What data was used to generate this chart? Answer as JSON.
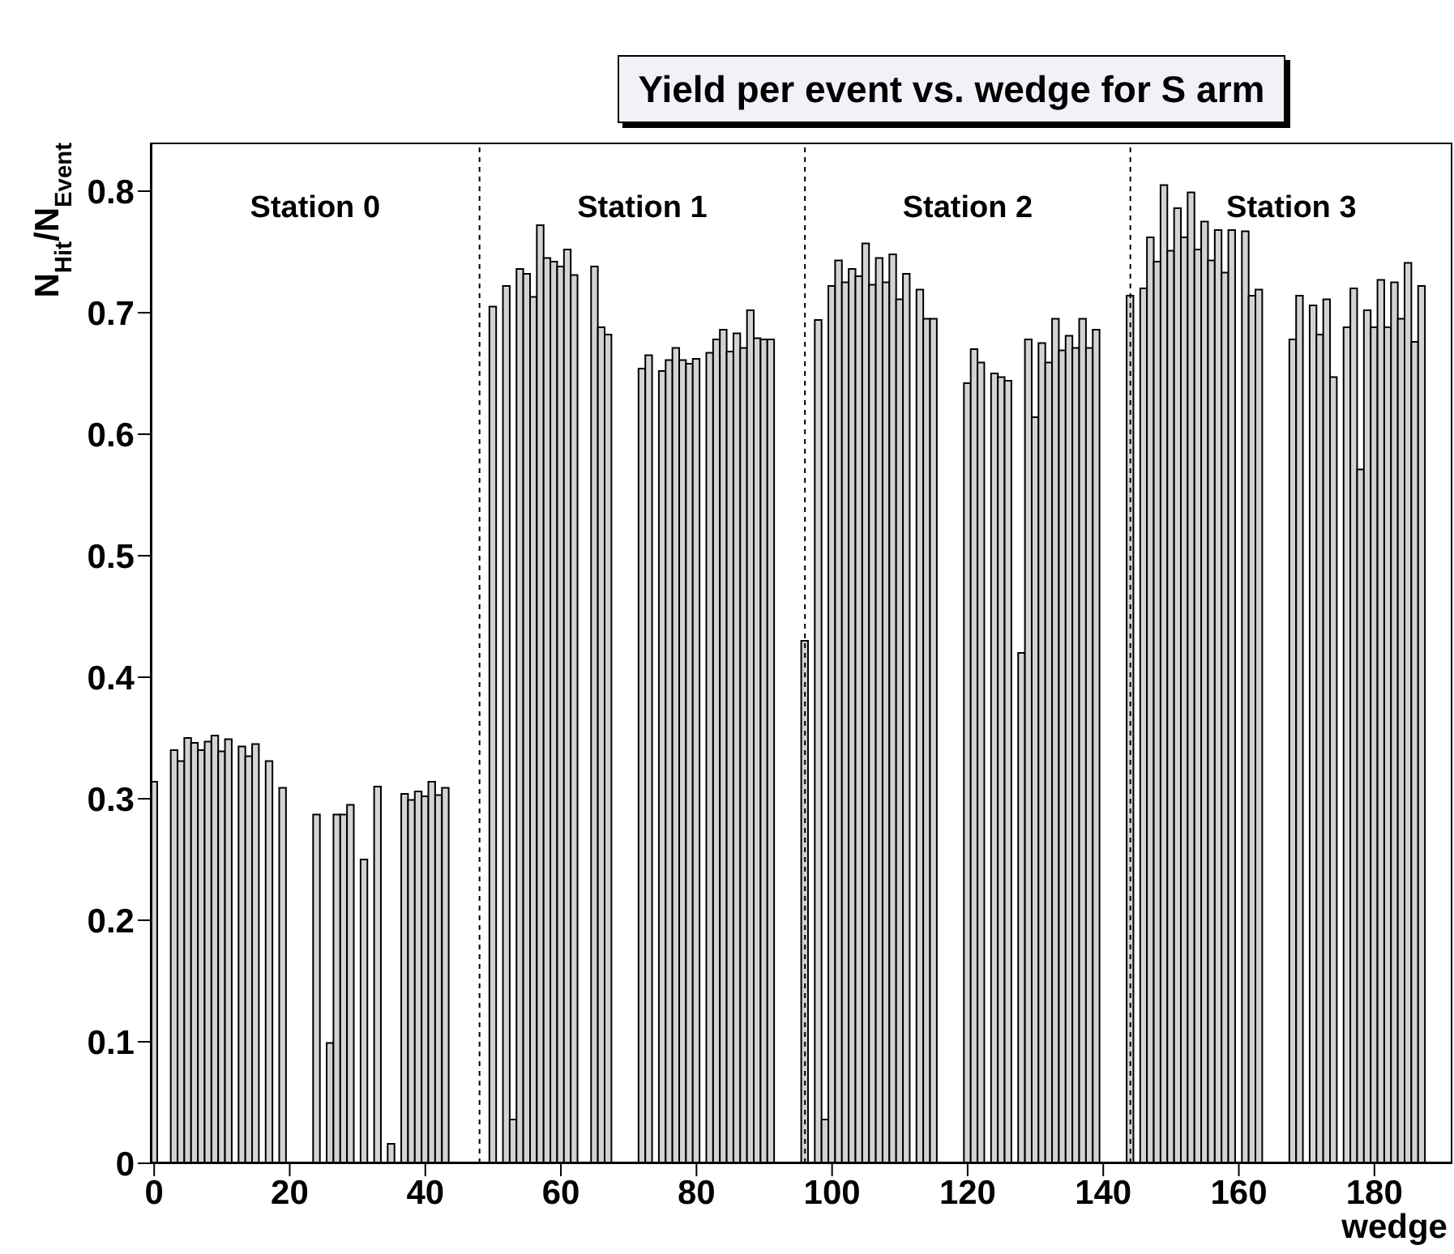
{
  "chart_data": {
    "type": "histogram",
    "title": "Yield per event vs. wedge for S arm",
    "xlabel": "wedge",
    "ylabel": "N$_{Hit}$/N$_{Event}$",
    "bins": [
      -0.5,
      0.5,
      1.5,
      2.5,
      3.5,
      4.5,
      5.5,
      6.5,
      7.5,
      8.5,
      9.5,
      10.5,
      11.5,
      12.5,
      13.5,
      14.5,
      15.5,
      16.5,
      17.5,
      18.5,
      19.5,
      20.5,
      21.5,
      22.5,
      23.5,
      24.5,
      25.5,
      26.5,
      27.5,
      28.5,
      29.5,
      30.5,
      31.5,
      32.5,
      33.5,
      34.5,
      35.5,
      36.5,
      37.5,
      38.5,
      39.5,
      40.5,
      41.5,
      42.5,
      43.5,
      44.5,
      45.5,
      46.5,
      47.5,
      48.5,
      49.5,
      50.5,
      51.5,
      52.5,
      53.5,
      54.5,
      55.5,
      56.5,
      57.5,
      58.5,
      59.5,
      60.5,
      61.5,
      62.5,
      63.5,
      64.5,
      65.5,
      66.5,
      67.5,
      68.5,
      69.5,
      70.5,
      71.5,
      72.5,
      73.5,
      74.5,
      75.5,
      76.5,
      77.5,
      78.5,
      79.5,
      80.5,
      81.5,
      82.5,
      83.5,
      84.5,
      85.5,
      86.5,
      87.5,
      88.5,
      89.5,
      90.5,
      91.5,
      92.5,
      93.5,
      94.5,
      95.5,
      96.5,
      97.5,
      98.5,
      99.5,
      100.5,
      101.5,
      102.5,
      103.5,
      104.5,
      105.5,
      106.5,
      107.5,
      108.5,
      109.5,
      110.5,
      111.5,
      112.5,
      113.5,
      114.5,
      115.5,
      116.5,
      117.5,
      118.5,
      119.5,
      120.5,
      121.5,
      122.5,
      123.5,
      124.5,
      125.5,
      126.5,
      127.5,
      128.5,
      129.5,
      130.5,
      131.5,
      132.5,
      133.5,
      134.5,
      135.5,
      136.5,
      137.5,
      138.5,
      139.5,
      140.5,
      141.5,
      142.5,
      143.5,
      144.5,
      145.5,
      146.5,
      147.5,
      148.5,
      149.5,
      150.5,
      151.5,
      152.5,
      153.5,
      154.5,
      155.5,
      156.5,
      157.5,
      158.5,
      159.5,
      160.5,
      161.5,
      162.5,
      163.5,
      164.5,
      165.5,
      166.5,
      167.5,
      168.5,
      169.5,
      170.5,
      171.5,
      172.5,
      173.5,
      174.5,
      175.5,
      176.5,
      177.5,
      178.5,
      179.5,
      180.5,
      181.5,
      182.5,
      183.5,
      184.5,
      185.5,
      186.5,
      187.5,
      188.5,
      189.5,
      190.5,
      191.5
    ],
    "values": [
      0.314,
      0,
      0,
      0.34,
      0.331,
      0.35,
      0.346,
      0.34,
      0.347,
      0.352,
      0.339,
      0.349,
      0,
      0.343,
      0.335,
      0.345,
      0,
      0.331,
      0,
      0.309,
      0,
      0,
      0,
      0,
      0.287,
      0,
      0.099,
      0.287,
      0.287,
      0.295,
      0,
      0.25,
      0,
      0.31,
      0,
      0.016,
      0,
      0.304,
      0.299,
      0.306,
      0.302,
      0.314,
      0.303,
      0.309,
      0,
      0,
      0,
      0,
      0,
      0,
      0.705,
      0,
      0.722,
      0.036,
      0.736,
      0.732,
      0.713,
      0.772,
      0.745,
      0.742,
      0.738,
      0.752,
      0.731,
      0,
      0,
      0.738,
      0.688,
      0.682,
      0,
      0,
      0,
      0,
      0.654,
      0.665,
      0,
      0.652,
      0.661,
      0.671,
      0.661,
      0.658,
      0.662,
      0,
      0.667,
      0.678,
      0.686,
      0.668,
      0.683,
      0.671,
      0.702,
      0.679,
      0.678,
      0.678,
      0,
      0,
      0,
      0,
      0.43,
      0,
      0.694,
      0.036,
      0.722,
      0.743,
      0.725,
      0.736,
      0.73,
      0.757,
      0.723,
      0.745,
      0.725,
      0.748,
      0.711,
      0.732,
      0,
      0.719,
      0.695,
      0.695,
      0,
      0,
      0,
      0,
      0.642,
      0.67,
      0.659,
      0,
      0.65,
      0.647,
      0.644,
      0,
      0.42,
      0.678,
      0.614,
      0.675,
      0.659,
      0.695,
      0.669,
      0.681,
      0.671,
      0.695,
      0.671,
      0.686,
      0,
      0,
      0,
      0,
      0.714,
      0,
      0.72,
      0.762,
      0.742,
      0.805,
      0.751,
      0.786,
      0.762,
      0.799,
      0.752,
      0.775,
      0.743,
      0.768,
      0.733,
      0.768,
      0,
      0.767,
      0.714,
      0.719,
      0,
      0,
      0,
      0,
      0.678,
      0.714,
      0,
      0.706,
      0.682,
      0.711,
      0.647,
      0,
      0.688,
      0.72,
      0.571,
      0.702,
      0.688,
      0.727,
      0.688,
      0.725,
      0.695,
      0.741,
      0.676,
      0.722,
      0,
      0,
      0,
      0
    ],
    "color": "#d3d3d3",
    "xlim": [
      -0.5,
      191.5
    ],
    "xticks": [
      0,
      20,
      40,
      60,
      80,
      100,
      120,
      140,
      160,
      180
    ],
    "ylim": [
      0,
      0.84
    ],
    "yticks": [
      0,
      0.1,
      0.2,
      0.3,
      0.4,
      0.5,
      0.6,
      0.7,
      0.8
    ],
    "ref_lines": [
      {
        "axis": "x",
        "value": 48,
        "color": "#000000",
        "line_style": "dashed"
      },
      {
        "axis": "x",
        "value": 96,
        "color": "#000000",
        "line_style": "dashed"
      },
      {
        "axis": "x",
        "value": 144,
        "color": "#000000",
        "line_style": "dashed"
      }
    ],
    "annotations": [
      "Station 0",
      "Station 1",
      "Station 2",
      "Station 3"
    ],
    "grid": false,
    "legend": false
  }
}
